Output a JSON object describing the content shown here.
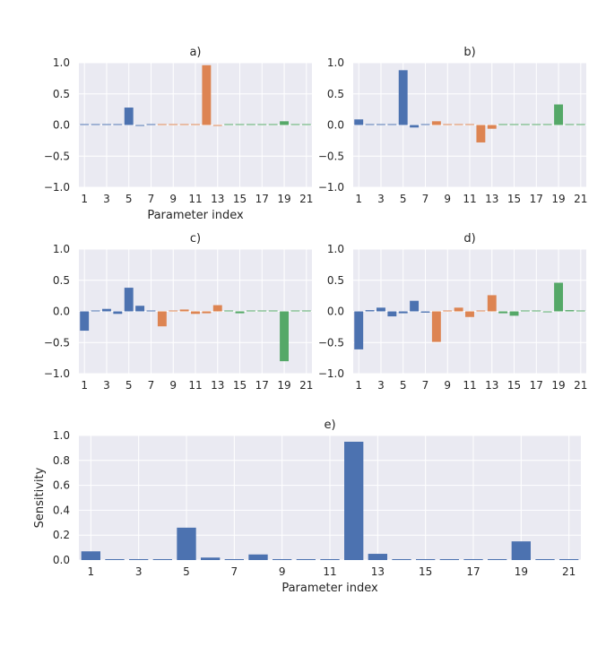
{
  "colors": {
    "panel_bg": "#EAEAF2",
    "grid": "#FFFFFF",
    "text": "#262626",
    "series_blue": "#4C72B0",
    "series_orange": "#DD8452",
    "series_green": "#55A868"
  },
  "chart_data": [
    {
      "id": "a",
      "type": "bar",
      "title": "a)",
      "xlabel": "Parameter index",
      "ylabel": "",
      "ylim": [
        -1.0,
        1.0
      ],
      "yticks": [
        -1.0,
        -0.5,
        0.0,
        0.5,
        1.0
      ],
      "ytick_labels": [
        "−1.0",
        "−0.5",
        "0.0",
        "0.5",
        "1.0"
      ],
      "xtick_labels": [
        "1",
        "3",
        "5",
        "7",
        "9",
        "11",
        "13",
        "15",
        "17",
        "19",
        "21"
      ],
      "x": [
        1,
        2,
        3,
        4,
        5,
        6,
        7,
        8,
        9,
        10,
        11,
        12,
        13,
        14,
        15,
        16,
        17,
        18,
        19,
        20,
        21
      ],
      "values": [
        0.01,
        0.0,
        0.005,
        0.0,
        0.28,
        -0.01,
        0.0,
        0.0,
        0.005,
        0.0,
        0.0,
        0.96,
        -0.01,
        0.0,
        0.0,
        0.0,
        0.0,
        0.0,
        0.06,
        0.0,
        0.0
      ],
      "bar_colors": [
        "blue",
        "blue",
        "blue",
        "blue",
        "blue",
        "blue",
        "blue",
        "orange",
        "orange",
        "orange",
        "orange",
        "orange",
        "orange",
        "green",
        "green",
        "green",
        "green",
        "green",
        "green",
        "green",
        "green"
      ]
    },
    {
      "id": "b",
      "type": "bar",
      "title": "b)",
      "xlabel": "",
      "ylabel": "",
      "ylim": [
        -1.0,
        1.0
      ],
      "yticks": [
        -1.0,
        -0.5,
        0.0,
        0.5,
        1.0
      ],
      "ytick_labels": [
        "−1.0",
        "−0.5",
        "0.0",
        "0.5",
        "1.0"
      ],
      "xtick_labels": [
        "1",
        "3",
        "5",
        "7",
        "9",
        "11",
        "13",
        "15",
        "17",
        "19",
        "21"
      ],
      "x": [
        1,
        2,
        3,
        4,
        5,
        6,
        7,
        8,
        9,
        10,
        11,
        12,
        13,
        14,
        15,
        16,
        17,
        18,
        19,
        20,
        21
      ],
      "values": [
        0.09,
        0.0,
        0.005,
        0.01,
        0.88,
        -0.04,
        0.0,
        0.06,
        0.0,
        0.0,
        0.005,
        -0.28,
        -0.06,
        0.0,
        0.0,
        0.0,
        0.0,
        0.0,
        0.33,
        0.0,
        0.0
      ],
      "bar_colors": [
        "blue",
        "blue",
        "blue",
        "blue",
        "blue",
        "blue",
        "blue",
        "orange",
        "orange",
        "orange",
        "orange",
        "orange",
        "orange",
        "green",
        "green",
        "green",
        "green",
        "green",
        "green",
        "green",
        "green"
      ]
    },
    {
      "id": "c",
      "type": "bar",
      "title": "c)",
      "xlabel": "",
      "ylabel": "",
      "ylim": [
        -1.0,
        1.0
      ],
      "yticks": [
        -1.0,
        -0.5,
        0.0,
        0.5,
        1.0
      ],
      "ytick_labels": [
        "−1.0",
        "−0.5",
        "0.0",
        "0.5",
        "1.0"
      ],
      "xtick_labels": [
        "1",
        "3",
        "5",
        "7",
        "9",
        "11",
        "13",
        "15",
        "17",
        "19",
        "21"
      ],
      "x": [
        1,
        2,
        3,
        4,
        5,
        6,
        7,
        8,
        9,
        10,
        11,
        12,
        13,
        14,
        15,
        16,
        17,
        18,
        19,
        20,
        21
      ],
      "values": [
        -0.31,
        0.0,
        0.04,
        -0.04,
        0.38,
        0.09,
        0.0,
        -0.24,
        0.0,
        0.03,
        -0.04,
        -0.03,
        0.1,
        0.0,
        -0.03,
        0.0,
        0.0,
        0.0,
        -0.8,
        0.005,
        0.0
      ],
      "bar_colors": [
        "blue",
        "blue",
        "blue",
        "blue",
        "blue",
        "blue",
        "blue",
        "orange",
        "orange",
        "orange",
        "orange",
        "orange",
        "orange",
        "green",
        "green",
        "green",
        "green",
        "green",
        "green",
        "green",
        "green"
      ]
    },
    {
      "id": "d",
      "type": "bar",
      "title": "d)",
      "xlabel": "",
      "ylabel": "",
      "ylim": [
        -1.0,
        1.0
      ],
      "yticks": [
        -1.0,
        -0.5,
        0.0,
        0.5,
        1.0
      ],
      "ytick_labels": [
        "−1.0",
        "−0.5",
        "0.0",
        "0.5",
        "1.0"
      ],
      "xtick_labels": [
        "1",
        "3",
        "5",
        "7",
        "9",
        "11",
        "13",
        "15",
        "17",
        "19",
        "21"
      ],
      "x": [
        1,
        2,
        3,
        4,
        5,
        6,
        7,
        8,
        9,
        10,
        11,
        12,
        13,
        14,
        15,
        16,
        17,
        18,
        19,
        20,
        21
      ],
      "values": [
        -0.61,
        0.02,
        0.06,
        -0.08,
        -0.03,
        0.17,
        -0.02,
        -0.49,
        0.0,
        0.06,
        -0.09,
        0.0,
        0.26,
        -0.03,
        -0.07,
        0.0,
        0.0,
        -0.01,
        0.46,
        0.02,
        0.0
      ],
      "bar_colors": [
        "blue",
        "blue",
        "blue",
        "blue",
        "blue",
        "blue",
        "blue",
        "orange",
        "orange",
        "orange",
        "orange",
        "orange",
        "orange",
        "green",
        "green",
        "green",
        "green",
        "green",
        "green",
        "green",
        "green"
      ]
    },
    {
      "id": "e",
      "type": "bar",
      "title": "e)",
      "xlabel": "Parameter index",
      "ylabel": "Sensitivity",
      "ylim": [
        0.0,
        1.0
      ],
      "yticks": [
        0.0,
        0.2,
        0.4,
        0.6,
        0.8,
        1.0
      ],
      "ytick_labels": [
        "0.0",
        "0.2",
        "0.4",
        "0.6",
        "0.8",
        "1.0"
      ],
      "xtick_labels": [
        "1",
        "3",
        "5",
        "7",
        "9",
        "11",
        "13",
        "15",
        "17",
        "19",
        "21"
      ],
      "x": [
        1,
        2,
        3,
        4,
        5,
        6,
        7,
        8,
        9,
        10,
        11,
        12,
        13,
        14,
        15,
        16,
        17,
        18,
        19,
        20,
        21
      ],
      "values": [
        0.07,
        0.0,
        0.005,
        0.0,
        0.26,
        0.02,
        0.0,
        0.045,
        0.0,
        0.0,
        0.0,
        0.95,
        0.05,
        0.0,
        0.0,
        0.0,
        0.0,
        0.0,
        0.15,
        0.005,
        0.0
      ],
      "bar_colors": [
        "blue",
        "blue",
        "blue",
        "blue",
        "blue",
        "blue",
        "blue",
        "blue",
        "blue",
        "blue",
        "blue",
        "blue",
        "blue",
        "blue",
        "blue",
        "blue",
        "blue",
        "blue",
        "blue",
        "blue",
        "blue"
      ]
    }
  ]
}
